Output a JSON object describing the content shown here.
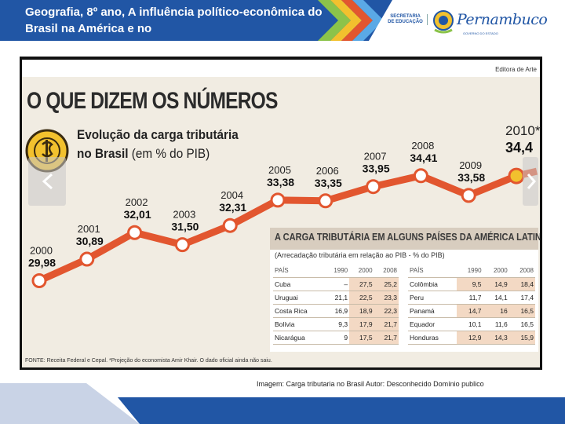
{
  "header": {
    "title": "Geografia, 8º ano, A influência político-econômica do Brasil na América e no",
    "secretaria": "SECRETARIA DE EDUCAÇÃO",
    "state_logo_text": "Pernambuco",
    "state_logo_sub": "GOVERNO DO ESTADO",
    "colors": {
      "blue": "#2156a5",
      "orange": "#e2562f",
      "green": "#8bc34a",
      "yellow": "#f2c12e"
    }
  },
  "infographic": {
    "publisher": "Editora de Arte",
    "headline": "O QUE DIZEM OS NÚMEROS",
    "chart_title_line1": "Evolução da carga tributária",
    "chart_title_line2_bold": "no Brasil",
    "chart_title_line2_rest": " (em % do PIB)",
    "footnote": "FONTE: Receita Federal e Cepal. *Projeção do economista Amir Khair. O dado oficial ainda não saiu."
  },
  "chart_data": {
    "type": "line",
    "title": "Evolução da carga tributária no Brasil (em % do PIB)",
    "xlabel": "",
    "ylabel": "% do PIB",
    "categories": [
      "2000",
      "2001",
      "2002",
      "2003",
      "2004",
      "2005",
      "2006",
      "2007",
      "2008",
      "2009",
      "2010*"
    ],
    "values": [
      29.98,
      30.89,
      32.01,
      31.5,
      32.31,
      33.38,
      33.35,
      33.95,
      34.41,
      33.58,
      34.4
    ],
    "value_labels": [
      "29,98",
      "30,89",
      "32,01",
      "31,50",
      "32,31",
      "33,38",
      "33,35",
      "33,95",
      "34,41",
      "33,58",
      "34,4"
    ],
    "ylim": [
      29.5,
      35
    ],
    "line_color": "#e2562f",
    "grid": false
  },
  "table": {
    "title": "A CARGA TRIBUTÁRIA EM ALGUNS PAÍSES DA AMÉRICA LATINA",
    "subtitle": "(Arrecadação tributária em relação ao PIB - % do PIB)",
    "headers": [
      "PAÍS",
      "1990",
      "2000",
      "2008"
    ],
    "left_rows": [
      [
        "Cuba",
        "–",
        "27,5",
        "25,2"
      ],
      [
        "Uruguai",
        "21,1",
        "22,5",
        "23,3"
      ],
      [
        "Costa Rica",
        "16,9",
        "18,9",
        "22,3"
      ],
      [
        "Bolívia",
        "9,3",
        "17,9",
        "21,7"
      ],
      [
        "Nicarágua",
        "9",
        "17,5",
        "21,7"
      ]
    ],
    "right_rows": [
      [
        "Colômbia",
        "9,5",
        "14,9",
        "18,4"
      ],
      [
        "Peru",
        "11,7",
        "14,1",
        "17,4"
      ],
      [
        "Panamá",
        "14,7",
        "16",
        "16,5"
      ],
      [
        "Equador",
        "10,1",
        "11,6",
        "16,5"
      ],
      [
        "Honduras",
        "12,9",
        "14,3",
        "15,9"
      ]
    ]
  },
  "caption": "Imagem: Carga tributaria no Brasil Autor: Desconhecido Domínio  publico"
}
